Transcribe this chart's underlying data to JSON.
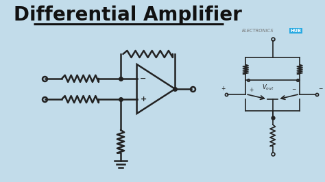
{
  "title": "Differential Amplifier",
  "bg_color": "#c2dcea",
  "title_color": "#111111",
  "title_fontsize": 20,
  "circuit_color": "#222222",
  "line_width": 1.8,
  "small_lw": 1.2,
  "electronics_text": "ELECTRONICS",
  "hub_text": "HUB",
  "hub_bg_color": "#29aae2",
  "plus_text": "+",
  "minus_text": "−",
  "resistor_amp": 0.1,
  "resistor_n": 6
}
